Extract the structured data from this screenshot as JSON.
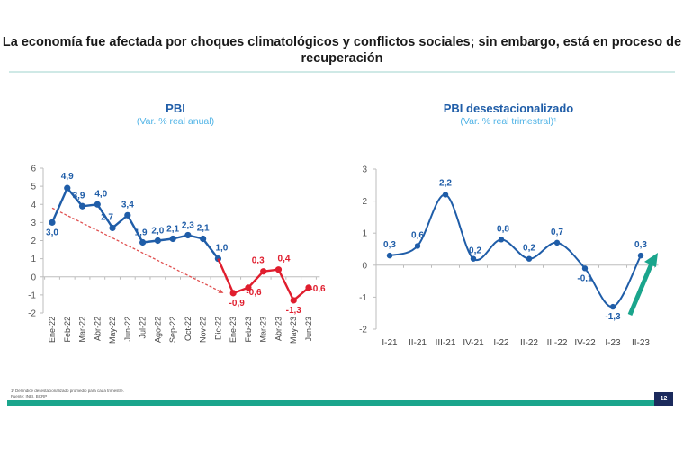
{
  "slide": {
    "title": "La economía fue afectada por choques climatológicos y conflictos sociales; sin embargo, está en proceso de recuperación",
    "footnote": "1/ Del índice desestacionalizado promedio para cada trimestre.",
    "source": "Fuente: INEI, BCRP",
    "page_number": "12",
    "colors": {
      "blue": "#1f5da8",
      "red": "#e01e2e",
      "green": "#1aa58c",
      "light_blue": "#4fb3e6"
    }
  },
  "chart_data": [
    {
      "type": "line",
      "title": "PBI",
      "subtitle": "(Var. % real anual)",
      "xlabel": "",
      "ylabel": "",
      "ylim": [
        -2,
        6
      ],
      "yticks": [
        6,
        5,
        4,
        3,
        2,
        1,
        0,
        -1,
        -2
      ],
      "categories": [
        "Ene-22",
        "Feb-22",
        "Mar-22",
        "Abr-22",
        "May-22",
        "Jun-22",
        "Jul-22",
        "Ago-22",
        "Sep-22",
        "Oct-22",
        "Nov-22",
        "Dic-22",
        "Ene-23",
        "Feb-23",
        "Mar-23",
        "Abr-23",
        "May-23",
        "Jun-23"
      ],
      "series": [
        {
          "name": "2022",
          "color": "#1f5da8",
          "values": [
            3.0,
            4.9,
            3.9,
            4.0,
            2.7,
            3.4,
            1.9,
            2.0,
            2.1,
            2.3,
            2.1,
            1.0,
            null,
            null,
            null,
            null,
            null,
            null
          ],
          "labels": [
            "3,0",
            "4,9",
            "3,9",
            "4,0",
            "2,7",
            "3,4",
            "1,9",
            "2,0",
            "2,1",
            "2,3",
            "2,1",
            "1,0"
          ]
        },
        {
          "name": "2023",
          "color": "#e01e2e",
          "values": [
            null,
            null,
            null,
            null,
            null,
            null,
            null,
            null,
            null,
            null,
            null,
            1.0,
            -0.9,
            -0.6,
            0.3,
            0.4,
            -1.3,
            -0.6
          ],
          "labels": [
            "-0,9",
            "-0,6",
            "0,3",
            "0,4",
            "-1,3",
            "-0,6"
          ]
        }
      ],
      "annotations": [
        {
          "type": "dashed-trend-arrow",
          "color": "#e05050",
          "from": {
            "x": "Ene-22",
            "y": 3.8
          },
          "to": {
            "x": "Dic-22",
            "y": -0.9
          }
        }
      ],
      "grid": false
    },
    {
      "type": "line",
      "title": "PBI desestacionalizado",
      "subtitle": "(Var. % real trimestral)¹",
      "xlabel": "",
      "ylabel": "",
      "ylim": [
        -2,
        3
      ],
      "yticks": [
        3,
        2,
        1,
        0,
        -1,
        -2
      ],
      "categories": [
        "I-21",
        "II-21",
        "III-21",
        "IV-21",
        "I-22",
        "II-22",
        "III-22",
        "IV-22",
        "I-23",
        "II-23"
      ],
      "series": [
        {
          "name": "PBI desestacionalizado",
          "color": "#1f5da8",
          "values": [
            0.3,
            0.6,
            2.2,
            0.2,
            0.8,
            0.2,
            0.7,
            -0.1,
            -1.3,
            0.3
          ],
          "labels": [
            "0,3",
            "0,6",
            "2,2",
            "0,2",
            "0,8",
            "0,2",
            "0,7",
            "-0,1",
            "-1,3",
            "0,3"
          ]
        }
      ],
      "annotations": [
        {
          "type": "recovery-arrow",
          "color": "#1aa58c",
          "direction": "up-right"
        }
      ],
      "smooth": true,
      "grid": false
    }
  ]
}
